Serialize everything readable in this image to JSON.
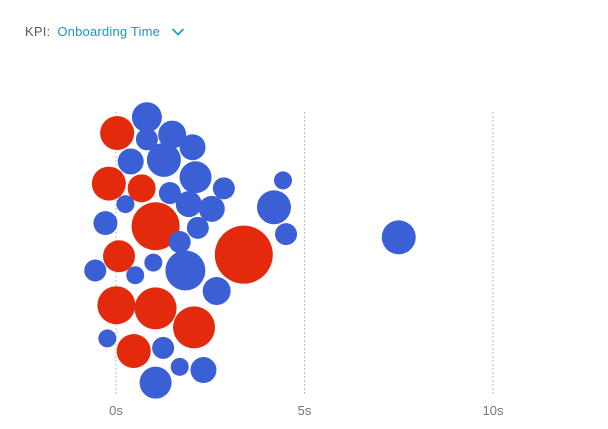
{
  "kpi": {
    "label": "KPI:",
    "selected": "Onboarding Time",
    "chevron_icon": "chevron-down-icon",
    "accent_color": "#1c97c2"
  },
  "chart_data": {
    "type": "scatter",
    "subtype": "bubble-beeswarm",
    "title": "",
    "xlabel": "",
    "ylabel": "",
    "xlim": [
      0,
      10
    ],
    "x_ticks": [
      {
        "value": 0,
        "label": "0s"
      },
      {
        "value": 5,
        "label": "5s"
      },
      {
        "value": 10,
        "label": "10s"
      }
    ],
    "gridlines": "vertical-dotted",
    "legend": "none",
    "colors": {
      "blue": "#3b5fd4",
      "red": "#e32a0c"
    },
    "points": [
      {
        "x": 0.82,
        "y": 0.91,
        "size": 15,
        "color": "blue"
      },
      {
        "x": 0.03,
        "y": 0.81,
        "size": 17,
        "color": "red"
      },
      {
        "x": 0.82,
        "y": 0.77,
        "size": 11,
        "color": "blue"
      },
      {
        "x": 1.49,
        "y": 0.8,
        "size": 14,
        "color": "blue"
      },
      {
        "x": 2.03,
        "y": 0.72,
        "size": 13,
        "color": "blue"
      },
      {
        "x": 0.39,
        "y": 0.63,
        "size": 13,
        "color": "blue"
      },
      {
        "x": 1.27,
        "y": 0.64,
        "size": 17,
        "color": "blue"
      },
      {
        "x": 2.11,
        "y": 0.53,
        "size": 16,
        "color": "blue"
      },
      {
        "x": -0.19,
        "y": 0.49,
        "size": 17,
        "color": "red"
      },
      {
        "x": 0.68,
        "y": 0.46,
        "size": 14,
        "color": "red"
      },
      {
        "x": 1.43,
        "y": 0.43,
        "size": 11,
        "color": "blue"
      },
      {
        "x": 2.86,
        "y": 0.46,
        "size": 11,
        "color": "blue"
      },
      {
        "x": 4.43,
        "y": 0.51,
        "size": 9,
        "color": "blue"
      },
      {
        "x": 0.25,
        "y": 0.36,
        "size": 9,
        "color": "blue"
      },
      {
        "x": 1.93,
        "y": 0.36,
        "size": 13,
        "color": "blue"
      },
      {
        "x": 2.54,
        "y": 0.33,
        "size": 13,
        "color": "blue"
      },
      {
        "x": 4.19,
        "y": 0.34,
        "size": 17,
        "color": "blue"
      },
      {
        "x": -0.28,
        "y": 0.24,
        "size": 12,
        "color": "blue"
      },
      {
        "x": 1.05,
        "y": 0.22,
        "size": 24,
        "color": "red"
      },
      {
        "x": 2.17,
        "y": 0.21,
        "size": 11,
        "color": "blue"
      },
      {
        "x": 4.51,
        "y": 0.17,
        "size": 11,
        "color": "blue"
      },
      {
        "x": 7.5,
        "y": 0.15,
        "size": 17,
        "color": "blue"
      },
      {
        "x": 1.69,
        "y": 0.12,
        "size": 11,
        "color": "blue"
      },
      {
        "x": 3.39,
        "y": 0.04,
        "size": 29,
        "color": "red"
      },
      {
        "x": 0.08,
        "y": 0.03,
        "size": 16,
        "color": "red"
      },
      {
        "x": 0.99,
        "y": -0.01,
        "size": 9,
        "color": "blue"
      },
      {
        "x": -0.55,
        "y": -0.06,
        "size": 11,
        "color": "blue"
      },
      {
        "x": 0.51,
        "y": -0.09,
        "size": 9,
        "color": "blue"
      },
      {
        "x": 1.84,
        "y": -0.06,
        "size": 20,
        "color": "blue"
      },
      {
        "x": 2.67,
        "y": -0.19,
        "size": 14,
        "color": "blue"
      },
      {
        "x": 0.01,
        "y": -0.28,
        "size": 19,
        "color": "red"
      },
      {
        "x": 1.05,
        "y": -0.3,
        "size": 21,
        "color": "red"
      },
      {
        "x": 2.07,
        "y": -0.42,
        "size": 21,
        "color": "red"
      },
      {
        "x": -0.23,
        "y": -0.49,
        "size": 9,
        "color": "blue"
      },
      {
        "x": 0.47,
        "y": -0.57,
        "size": 17,
        "color": "red"
      },
      {
        "x": 1.25,
        "y": -0.55,
        "size": 11,
        "color": "blue"
      },
      {
        "x": 1.69,
        "y": -0.67,
        "size": 9,
        "color": "blue"
      },
      {
        "x": 2.32,
        "y": -0.69,
        "size": 13,
        "color": "blue"
      },
      {
        "x": 1.05,
        "y": -0.77,
        "size": 16,
        "color": "blue"
      }
    ]
  }
}
